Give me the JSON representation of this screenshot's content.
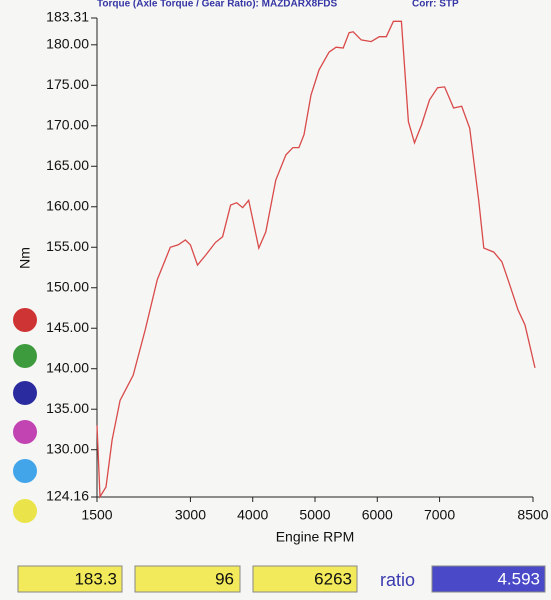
{
  "chart_data": {
    "type": "line",
    "title": "Torque (Axle Torque / Gear Ratio): MAZDARX8FDS",
    "subtitle": "Corr: STP",
    "x_label": "Engine RPM",
    "y_label": "Nm",
    "color": "#d94a4a",
    "x": [
      1500,
      1548,
      1645,
      1742,
      1871,
      2081,
      2274,
      2468,
      2677,
      2806,
      2919,
      3000,
      3113,
      3242,
      3403,
      3516,
      3645,
      3742,
      3839,
      3935,
      4097,
      4210,
      4371,
      4532,
      4645,
      4742,
      4823,
      4935,
      5065,
      5226,
      5339,
      5452,
      5548,
      5613,
      5742,
      5903,
      6032,
      6145,
      6258,
      6387,
      6500,
      6597,
      6710,
      6839,
      6968,
      7081,
      7226,
      7355,
      7484,
      7629,
      7710,
      7871,
      8000,
      8129,
      8258,
      8371,
      8532
    ],
    "values": [
      133.0,
      124.2,
      125.4,
      131.2,
      136.1,
      139.2,
      144.8,
      151.0,
      155.0,
      155.3,
      155.9,
      155.3,
      152.8,
      154.0,
      155.6,
      156.3,
      160.2,
      160.5,
      159.9,
      160.8,
      154.9,
      156.9,
      163.3,
      166.4,
      167.3,
      167.3,
      168.9,
      173.8,
      176.9,
      179.1,
      179.7,
      179.6,
      181.5,
      181.6,
      180.6,
      180.4,
      181.0,
      181.0,
      182.9,
      182.9,
      170.5,
      167.9,
      170.1,
      173.2,
      174.7,
      174.8,
      172.2,
      172.4,
      169.7,
      160.8,
      154.9,
      154.4,
      153.2,
      150.3,
      147.3,
      145.4,
      140.1
    ],
    "xlim": [
      1500,
      8500
    ],
    "xticks": [
      1500,
      3000,
      4000,
      5000,
      6000,
      7000,
      8500
    ],
    "ylim": [
      124.16,
      183.31
    ],
    "yticks": [
      124.16,
      {
        "value": 130,
        "label": "130.00"
      },
      {
        "value": 135,
        "label": "135.00"
      },
      {
        "value": 140,
        "label": "140.00"
      },
      {
        "value": 145,
        "label": "145.00"
      },
      {
        "value": 150,
        "label": "150.00"
      },
      {
        "value": 155,
        "label": "155.00"
      },
      {
        "value": 160,
        "label": "160.00"
      },
      {
        "value": 165,
        "label": "165.00"
      },
      {
        "value": 170,
        "label": "170.00"
      },
      {
        "value": 175,
        "label": "175.00"
      },
      {
        "value": 180,
        "label": "180.00"
      },
      183.31
    ],
    "grid": false
  },
  "readouts": {
    "values": [
      183.3,
      96,
      6263
    ],
    "ratio_label": "ratio",
    "ratio": 4.593
  }
}
